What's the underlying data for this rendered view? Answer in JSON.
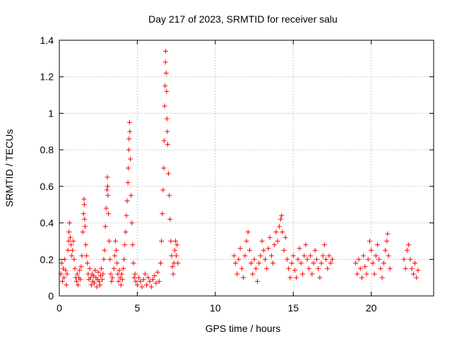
{
  "chart_data": {
    "type": "scatter",
    "title": "Day 217 of 2023, SRMTID for receiver salu",
    "xlabel": "GPS time / hours",
    "ylabel": "SRMTID / TECUs",
    "xlim": [
      0,
      24
    ],
    "ylim": [
      0,
      1.4
    ],
    "grid": true,
    "marker": "+",
    "color": "#ff0000",
    "xticks": [
      0,
      5,
      10,
      15,
      20
    ],
    "xtick_labels": [
      "0",
      "5",
      "10",
      "15",
      "20"
    ],
    "yticks": [
      0,
      0.2,
      0.4,
      0.6,
      0.8,
      1.0,
      1.2,
      1.4
    ],
    "ytick_labels": [
      "0",
      "0.2",
      "0.4",
      "0.6",
      "0.8",
      "1",
      "1.2",
      "1.4"
    ],
    "series": [
      {
        "name": "SRMTID",
        "points": [
          [
            0.1,
            0.12
          ],
          [
            0.15,
            0.18
          ],
          [
            0.2,
            0.08
          ],
          [
            0.25,
            0.15
          ],
          [
            0.3,
            0.1
          ],
          [
            0.35,
            0.2
          ],
          [
            0.4,
            0.14
          ],
          [
            0.45,
            0.06
          ],
          [
            0.5,
            0.12
          ],
          [
            0.55,
            0.25
          ],
          [
            0.6,
            0.3
          ],
          [
            0.62,
            0.35
          ],
          [
            0.65,
            0.4
          ],
          [
            0.7,
            0.32
          ],
          [
            0.75,
            0.28
          ],
          [
            0.8,
            0.22
          ],
          [
            0.85,
            0.25
          ],
          [
            0.9,
            0.3
          ],
          [
            0.95,
            0.2
          ],
          [
            1.0,
            0.15
          ],
          [
            1.05,
            0.1
          ],
          [
            1.1,
            0.08
          ],
          [
            1.15,
            0.12
          ],
          [
            1.2,
            0.06
          ],
          [
            1.25,
            0.1
          ],
          [
            1.3,
            0.14
          ],
          [
            1.35,
            0.09
          ],
          [
            1.4,
            0.16
          ],
          [
            1.45,
            0.22
          ],
          [
            1.5,
            0.35
          ],
          [
            1.55,
            0.45
          ],
          [
            1.58,
            0.53
          ],
          [
            1.6,
            0.5
          ],
          [
            1.62,
            0.42
          ],
          [
            1.65,
            0.38
          ],
          [
            1.7,
            0.28
          ],
          [
            1.75,
            0.22
          ],
          [
            1.8,
            0.18
          ],
          [
            1.85,
            0.12
          ],
          [
            1.9,
            0.09
          ],
          [
            1.95,
            0.15
          ],
          [
            2.0,
            0.1
          ],
          [
            2.05,
            0.06
          ],
          [
            2.1,
            0.12
          ],
          [
            2.15,
            0.08
          ],
          [
            2.2,
            0.11
          ],
          [
            2.25,
            0.07
          ],
          [
            2.3,
            0.14
          ],
          [
            2.35,
            0.1
          ],
          [
            2.4,
            0.05
          ],
          [
            2.45,
            0.09
          ],
          [
            2.5,
            0.13
          ],
          [
            2.55,
            0.08
          ],
          [
            2.6,
            0.06
          ],
          [
            2.65,
            0.11
          ],
          [
            2.7,
            0.15
          ],
          [
            2.75,
            0.09
          ],
          [
            2.8,
            0.12
          ],
          [
            2.85,
            0.2
          ],
          [
            2.9,
            0.25
          ],
          [
            2.95,
            0.38
          ],
          [
            3.0,
            0.48
          ],
          [
            3.05,
            0.58
          ],
          [
            3.08,
            0.65
          ],
          [
            3.1,
            0.6
          ],
          [
            3.12,
            0.55
          ],
          [
            3.15,
            0.45
          ],
          [
            3.2,
            0.3
          ],
          [
            3.25,
            0.2
          ],
          [
            3.3,
            0.12
          ],
          [
            3.35,
            0.08
          ],
          [
            3.4,
            0.1
          ],
          [
            3.5,
            0.15
          ],
          [
            3.55,
            0.22
          ],
          [
            3.6,
            0.3
          ],
          [
            3.65,
            0.25
          ],
          [
            3.7,
            0.18
          ],
          [
            3.75,
            0.12
          ],
          [
            3.8,
            0.08
          ],
          [
            3.85,
            0.14
          ],
          [
            3.9,
            0.1
          ],
          [
            3.95,
            0.06
          ],
          [
            4.0,
            0.12
          ],
          [
            4.05,
            0.09
          ],
          [
            4.1,
            0.15
          ],
          [
            4.15,
            0.2
          ],
          [
            4.2,
            0.28
          ],
          [
            4.25,
            0.35
          ],
          [
            4.3,
            0.44
          ],
          [
            4.35,
            0.52
          ],
          [
            4.4,
            0.62
          ],
          [
            4.42,
            0.7
          ],
          [
            4.45,
            0.8
          ],
          [
            4.47,
            0.86
          ],
          [
            4.5,
            0.95
          ],
          [
            4.52,
            0.9
          ],
          [
            4.55,
            0.75
          ],
          [
            4.6,
            0.55
          ],
          [
            4.65,
            0.4
          ],
          [
            4.7,
            0.28
          ],
          [
            4.75,
            0.18
          ],
          [
            4.8,
            0.1
          ],
          [
            4.85,
            0.12
          ],
          [
            4.9,
            0.08
          ],
          [
            5.0,
            0.06
          ],
          [
            5.1,
            0.1
          ],
          [
            5.2,
            0.08
          ],
          [
            5.3,
            0.05
          ],
          [
            5.4,
            0.09
          ],
          [
            5.5,
            0.12
          ],
          [
            5.6,
            0.06
          ],
          [
            5.7,
            0.1
          ],
          [
            5.8,
            0.08
          ],
          [
            5.9,
            0.05
          ],
          [
            6.0,
            0.09
          ],
          [
            6.1,
            0.11
          ],
          [
            6.2,
            0.07
          ],
          [
            6.3,
            0.13
          ],
          [
            6.4,
            0.08
          ],
          [
            6.5,
            0.18
          ],
          [
            6.55,
            0.3
          ],
          [
            6.6,
            0.45
          ],
          [
            6.65,
            0.58
          ],
          [
            6.7,
            0.7
          ],
          [
            6.72,
            0.85
          ],
          [
            6.75,
            1.04
          ],
          [
            6.78,
            1.15
          ],
          [
            6.8,
            1.28
          ],
          [
            6.82,
            1.34
          ],
          [
            6.85,
            1.22
          ],
          [
            6.88,
            1.12
          ],
          [
            6.9,
            0.97
          ],
          [
            6.92,
            0.9
          ],
          [
            6.95,
            0.83
          ],
          [
            7.0,
            0.67
          ],
          [
            7.05,
            0.55
          ],
          [
            7.1,
            0.42
          ],
          [
            7.15,
            0.3
          ],
          [
            7.2,
            0.22
          ],
          [
            7.25,
            0.16
          ],
          [
            7.3,
            0.12
          ],
          [
            7.35,
            0.18
          ],
          [
            7.4,
            0.25
          ],
          [
            7.45,
            0.3
          ],
          [
            7.5,
            0.22
          ],
          [
            7.55,
            0.28
          ],
          [
            7.6,
            0.18
          ],
          [
            11.2,
            0.22
          ],
          [
            11.3,
            0.18
          ],
          [
            11.4,
            0.12
          ],
          [
            11.5,
            0.2
          ],
          [
            11.6,
            0.26
          ],
          [
            11.7,
            0.15
          ],
          [
            11.8,
            0.1
          ],
          [
            11.9,
            0.22
          ],
          [
            12.0,
            0.3
          ],
          [
            12.1,
            0.35
          ],
          [
            12.2,
            0.25
          ],
          [
            12.3,
            0.18
          ],
          [
            12.4,
            0.12
          ],
          [
            12.5,
            0.2
          ],
          [
            12.6,
            0.15
          ],
          [
            12.7,
            0.08
          ],
          [
            12.8,
            0.18
          ],
          [
            12.9,
            0.22
          ],
          [
            13.0,
            0.3
          ],
          [
            13.1,
            0.25
          ],
          [
            13.2,
            0.2
          ],
          [
            13.3,
            0.15
          ],
          [
            13.4,
            0.26
          ],
          [
            13.5,
            0.32
          ],
          [
            13.6,
            0.22
          ],
          [
            13.7,
            0.18
          ],
          [
            13.8,
            0.28
          ],
          [
            13.9,
            0.35
          ],
          [
            14.0,
            0.3
          ],
          [
            14.1,
            0.38
          ],
          [
            14.2,
            0.42
          ],
          [
            14.25,
            0.44
          ],
          [
            14.3,
            0.35
          ],
          [
            14.4,
            0.25
          ],
          [
            14.5,
            0.32
          ],
          [
            14.6,
            0.2
          ],
          [
            14.7,
            0.15
          ],
          [
            14.8,
            0.1
          ],
          [
            14.9,
            0.18
          ],
          [
            15.0,
            0.22
          ],
          [
            15.1,
            0.14
          ],
          [
            15.2,
            0.1
          ],
          [
            15.3,
            0.2
          ],
          [
            15.4,
            0.26
          ],
          [
            15.5,
            0.18
          ],
          [
            15.6,
            0.12
          ],
          [
            15.7,
            0.22
          ],
          [
            15.8,
            0.28
          ],
          [
            15.9,
            0.2
          ],
          [
            16.0,
            0.15
          ],
          [
            16.1,
            0.22
          ],
          [
            16.2,
            0.12
          ],
          [
            16.3,
            0.18
          ],
          [
            16.4,
            0.25
          ],
          [
            16.5,
            0.2
          ],
          [
            16.6,
            0.15
          ],
          [
            16.7,
            0.1
          ],
          [
            16.8,
            0.18
          ],
          [
            16.9,
            0.22
          ],
          [
            17.0,
            0.28
          ],
          [
            17.1,
            0.2
          ],
          [
            17.2,
            0.15
          ],
          [
            17.3,
            0.22
          ],
          [
            17.4,
            0.18
          ],
          [
            17.5,
            0.2
          ],
          [
            19.0,
            0.18
          ],
          [
            19.1,
            0.12
          ],
          [
            19.2,
            0.2
          ],
          [
            19.3,
            0.15
          ],
          [
            19.4,
            0.1
          ],
          [
            19.5,
            0.22
          ],
          [
            19.6,
            0.16
          ],
          [
            19.7,
            0.12
          ],
          [
            19.8,
            0.2
          ],
          [
            19.9,
            0.3
          ],
          [
            20.0,
            0.25
          ],
          [
            20.1,
            0.18
          ],
          [
            20.2,
            0.12
          ],
          [
            20.3,
            0.22
          ],
          [
            20.4,
            0.28
          ],
          [
            20.5,
            0.2
          ],
          [
            20.6,
            0.15
          ],
          [
            20.7,
            0.1
          ],
          [
            20.8,
            0.18
          ],
          [
            20.9,
            0.25
          ],
          [
            21.0,
            0.3
          ],
          [
            21.05,
            0.34
          ],
          [
            21.1,
            0.22
          ],
          [
            21.2,
            0.15
          ],
          [
            22.1,
            0.2
          ],
          [
            22.2,
            0.15
          ],
          [
            22.3,
            0.25
          ],
          [
            22.4,
            0.28
          ],
          [
            22.5,
            0.2
          ],
          [
            22.6,
            0.15
          ],
          [
            22.7,
            0.12
          ],
          [
            22.8,
            0.18
          ],
          [
            22.9,
            0.1
          ],
          [
            23.0,
            0.14
          ]
        ]
      }
    ]
  }
}
